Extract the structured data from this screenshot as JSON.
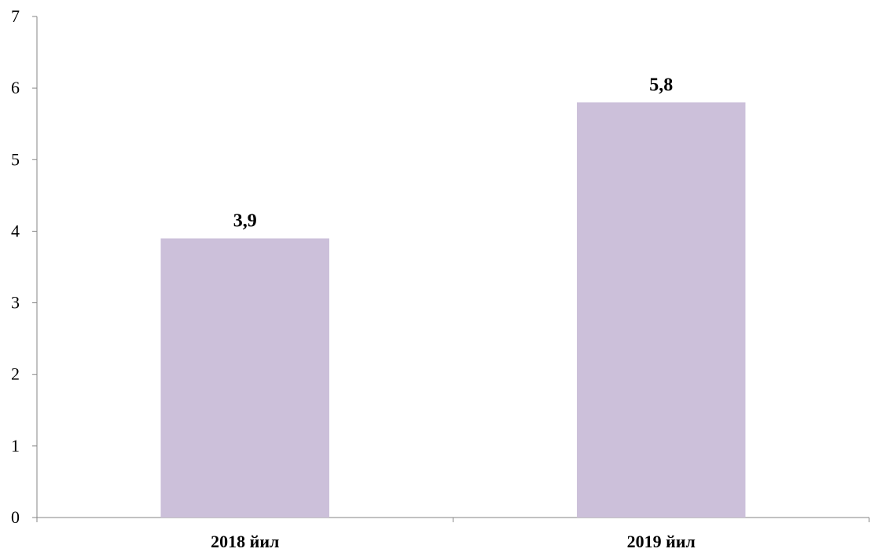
{
  "chart_data": {
    "type": "bar",
    "title": "",
    "xlabel": "",
    "ylabel": "",
    "categories": [
      "2018 йил",
      "2019 йил"
    ],
    "values": [
      3.9,
      5.8
    ],
    "data_labels": [
      "3,9",
      "5,8"
    ],
    "ylim": [
      0,
      7
    ],
    "yticks": [
      0,
      1,
      2,
      3,
      4,
      5,
      6,
      7
    ],
    "ytick_labels": [
      "0",
      "1",
      "2",
      "3",
      "4",
      "5",
      "6",
      "7"
    ],
    "grid": false,
    "legend": "none",
    "bar_color": "#CCC0DA"
  }
}
